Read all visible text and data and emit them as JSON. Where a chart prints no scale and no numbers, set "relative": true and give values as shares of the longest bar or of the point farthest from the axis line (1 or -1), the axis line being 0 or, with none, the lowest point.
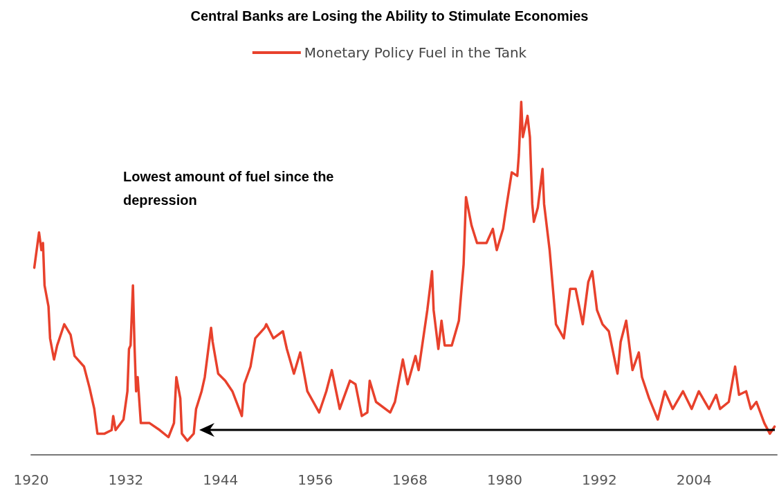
{
  "chart_data": {
    "type": "line",
    "title": "Central Banks are Losing the Ability to Stimulate Economies",
    "relative": true,
    "legend": "top",
    "marker": "none",
    "line_style": "solid",
    "xlim": [
      1920,
      2014.5
    ],
    "xticks": [
      1920,
      1932,
      1944,
      1956,
      1968,
      1980,
      1992,
      2004
    ],
    "annotations": [
      "Lowest amount of fuel since the depression"
    ],
    "x": [
      1920.4,
      1921.0,
      1921.3,
      1921.5,
      1921.7,
      1922.2,
      1922.4,
      1922.9,
      1923.3,
      1924.2,
      1925.0,
      1925.5,
      1926.7,
      1927.4,
      1928.0,
      1928.4,
      1929.3,
      1930.2,
      1930.4,
      1930.7,
      1931.7,
      1932.2,
      1932.4,
      1932.6,
      1932.9,
      1933.1,
      1933.3,
      1933.5,
      1933.9,
      1935.0,
      1936.3,
      1937.4,
      1938.1,
      1938.4,
      1938.9,
      1939.1,
      1939.8,
      1940.6,
      1940.9,
      1941.6,
      1942.0,
      1942.8,
      1943.0,
      1943.7,
      1944.6,
      1945.5,
      1946.7,
      1947.0,
      1947.8,
      1948.4,
      1949.6,
      1949.8,
      1950.7,
      1951.9,
      1952.4,
      1953.3,
      1954.1,
      1955.0,
      1956.5,
      1957.4,
      1958.1,
      1959.1,
      1960.4,
      1961.1,
      1961.9,
      1962.6,
      1962.9,
      1963.7,
      1965.5,
      1966.1,
      1967.1,
      1967.7,
      1968.7,
      1969.1,
      1970.2,
      1970.8,
      1971.0,
      1971.6,
      1972.0,
      1972.4,
      1973.3,
      1974.2,
      1974.8,
      1975.1,
      1975.8,
      1976.5,
      1977.7,
      1978.5,
      1979.0,
      1979.8,
      1980.2,
      1980.9,
      1981.6,
      1981.8,
      1982.1,
      1982.3,
      1982.9,
      1983.2,
      1983.5,
      1983.7,
      1984.2,
      1984.8,
      1985.0,
      1985.7,
      1986.5,
      1987.5,
      1988.3,
      1989.0,
      1989.9,
      1990.6,
      1991.1,
      1991.7,
      1992.4,
      1993.2,
      1994.3,
      1994.7,
      1995.4,
      1996.2,
      1997.0,
      1997.4,
      1998.3,
      1999.4,
      2000.3,
      2001.3,
      2002.6,
      2003.7,
      2004.6,
      2005.9,
      2006.8,
      2007.3,
      2008.4,
      2009.2,
      2009.7,
      2010.6,
      2011.2,
      2011.9,
      2012.9,
      2013.6,
      2014.2
    ],
    "series": [
      {
        "name": "Monetary Policy Fuel in the Tank",
        "color": "#e8412c",
        "values": [
          0.53,
          0.63,
          0.58,
          0.6,
          0.48,
          0.42,
          0.33,
          0.27,
          0.31,
          0.37,
          0.34,
          0.28,
          0.25,
          0.19,
          0.13,
          0.06,
          0.06,
          0.07,
          0.11,
          0.07,
          0.1,
          0.18,
          0.3,
          0.31,
          0.48,
          0.31,
          0.18,
          0.22,
          0.09,
          0.09,
          0.07,
          0.05,
          0.09,
          0.22,
          0.16,
          0.06,
          0.04,
          0.06,
          0.13,
          0.18,
          0.22,
          0.36,
          0.32,
          0.23,
          0.21,
          0.18,
          0.11,
          0.2,
          0.25,
          0.33,
          0.36,
          0.37,
          0.33,
          0.35,
          0.3,
          0.23,
          0.29,
          0.18,
          0.12,
          0.18,
          0.24,
          0.13,
          0.21,
          0.2,
          0.11,
          0.12,
          0.21,
          0.15,
          0.12,
          0.15,
          0.27,
          0.2,
          0.28,
          0.24,
          0.41,
          0.52,
          0.41,
          0.3,
          0.38,
          0.31,
          0.31,
          0.38,
          0.54,
          0.73,
          0.65,
          0.6,
          0.6,
          0.64,
          0.58,
          0.64,
          0.7,
          0.8,
          0.79,
          0.85,
          1.0,
          0.9,
          0.96,
          0.9,
          0.71,
          0.66,
          0.7,
          0.81,
          0.71,
          0.58,
          0.37,
          0.33,
          0.47,
          0.47,
          0.37,
          0.49,
          0.52,
          0.41,
          0.37,
          0.35,
          0.23,
          0.32,
          0.38,
          0.24,
          0.29,
          0.22,
          0.16,
          0.1,
          0.18,
          0.13,
          0.18,
          0.13,
          0.18,
          0.13,
          0.17,
          0.13,
          0.15,
          0.25,
          0.17,
          0.18,
          0.13,
          0.15,
          0.09,
          0.06,
          0.08
        ]
      }
    ]
  }
}
